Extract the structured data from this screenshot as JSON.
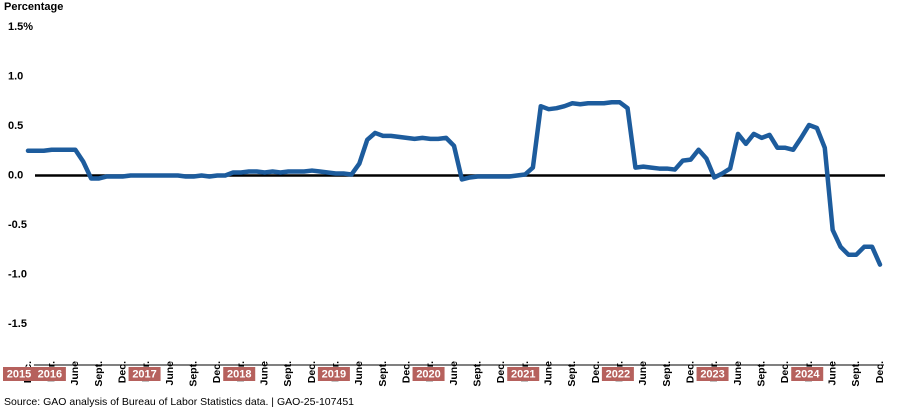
{
  "chart_data": {
    "type": "line",
    "y_axis_label": "Percentage",
    "source": "Source: GAO analysis of Bureau of Labor Statistics data.  |  GAO-25-107451",
    "color": "#1d5c9d",
    "year_box_color": "#b6615d",
    "ylim": [
      -1.5,
      1.5
    ],
    "yticks": [
      {
        "value": 1.5,
        "label": "1.5%"
      },
      {
        "value": 1,
        "label": "1.0"
      },
      0.5,
      {
        "value": 0,
        "label": "0.0"
      },
      -0.5,
      {
        "value": -1,
        "label": "-1.0"
      },
      -1.5
    ],
    "years": [
      "2015",
      "2016",
      "2017",
      "2018",
      "2019",
      "2020",
      "2021",
      "2022",
      "2023",
      "2024"
    ],
    "categories": [
      "Dec.",
      null,
      null,
      "Mar.",
      null,
      null,
      "June",
      null,
      null,
      "Sept.",
      null,
      null,
      "Dec.",
      null,
      null,
      "Mar.",
      null,
      null,
      "June",
      null,
      null,
      "Sept.",
      null,
      null,
      "Dec.",
      null,
      null,
      "Mar.",
      null,
      null,
      "June",
      null,
      null,
      "Sept.",
      null,
      null,
      "Dec.",
      null,
      null,
      "Mar.",
      null,
      null,
      "June",
      null,
      null,
      "Sept.",
      null,
      null,
      "Dec.",
      null,
      null,
      "Mar.",
      null,
      null,
      "June",
      null,
      null,
      "Sept.",
      null,
      null,
      "Dec.",
      null,
      null,
      "Mar.",
      null,
      null,
      "June",
      null,
      null,
      "Sept.",
      null,
      null,
      "Dec.",
      null,
      null,
      "Mar.",
      null,
      null,
      "June",
      null,
      null,
      "Sept.",
      null,
      null,
      "Dec.",
      null,
      null,
      "Mar.",
      null,
      null,
      "June",
      null,
      null,
      "Sept.",
      null,
      null,
      "Dec.",
      null,
      null,
      "Mar.",
      null,
      null,
      "June",
      null,
      null,
      "Sept.",
      null,
      null,
      "Dec."
    ],
    "values": [
      0.25,
      0.25,
      0.25,
      0.26,
      0.26,
      0.26,
      0.26,
      0.14,
      -0.03,
      -0.03,
      -0.01,
      -0.01,
      -0.01,
      0,
      0,
      0,
      0,
      0,
      0,
      0,
      -0.01,
      -0.01,
      0,
      -0.01,
      0,
      0,
      0.03,
      0.03,
      0.04,
      0.04,
      0.03,
      0.04,
      0.03,
      0.04,
      0.04,
      0.04,
      0.05,
      0.04,
      0.03,
      0.02,
      0.02,
      0.01,
      0.12,
      0.36,
      0.43,
      0.4,
      0.4,
      0.39,
      0.38,
      0.37,
      0.38,
      0.37,
      0.37,
      0.38,
      0.3,
      -0.04,
      -0.02,
      -0.01,
      -0.01,
      -0.01,
      -0.01,
      -0.01,
      0,
      0.01,
      0.08,
      0.7,
      0.67,
      0.68,
      0.7,
      0.73,
      0.72,
      0.73,
      0.73,
      0.73,
      0.74,
      0.74,
      0.68,
      0.08,
      0.09,
      0.08,
      0.07,
      0.07,
      0.06,
      0.15,
      0.16,
      0.26,
      0.17,
      -0.02,
      0.02,
      0.07,
      0.42,
      0.32,
      0.42,
      0.38,
      0.41,
      0.28,
      0.28,
      0.26,
      0.38,
      0.51,
      0.48,
      0.28,
      -0.55,
      -0.72,
      -0.8,
      -0.8,
      -0.72,
      -0.72,
      -0.9
    ]
  }
}
